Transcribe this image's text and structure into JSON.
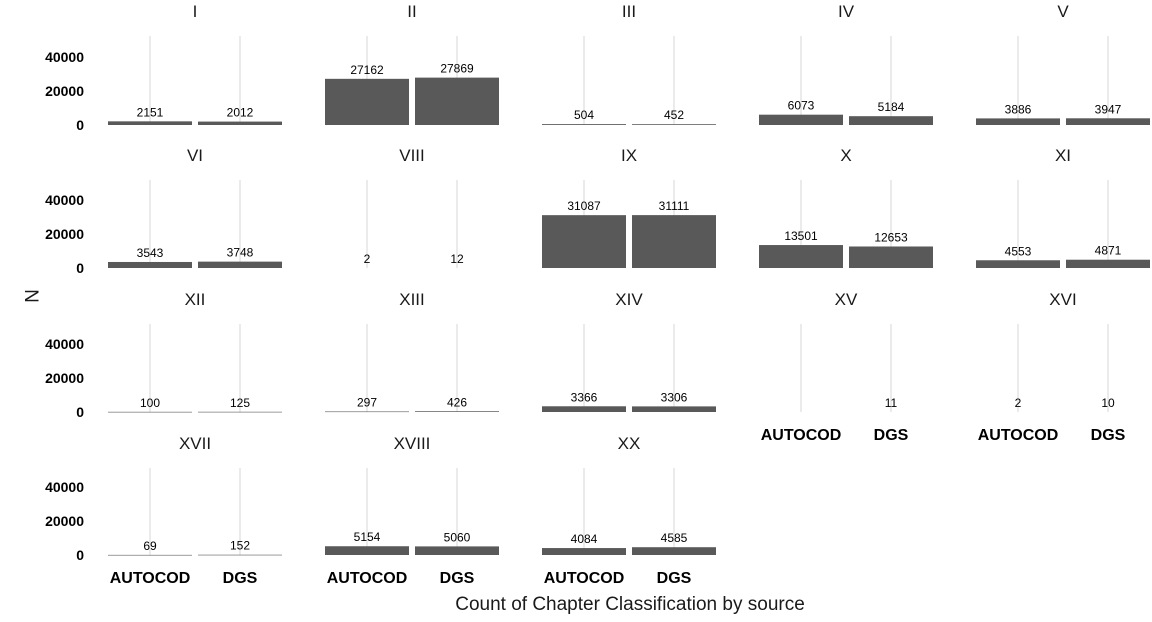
{
  "chart_data": {
    "type": "bar",
    "facet_layout": "wrap-5-columns",
    "xlabel": "Count of Chapter Classification by source",
    "ylabel": "N",
    "categories": [
      "AUTOCOD",
      "DGS"
    ],
    "y_ticks": [
      0,
      20000,
      40000
    ],
    "ylim": [
      0,
      52000
    ],
    "grid": "vertical-major",
    "bar_color": "#595959",
    "facets": [
      {
        "label": "I",
        "values": [
          2151,
          2012
        ]
      },
      {
        "label": "II",
        "values": [
          27162,
          27869
        ]
      },
      {
        "label": "III",
        "values": [
          504,
          452
        ]
      },
      {
        "label": "IV",
        "values": [
          6073,
          5184
        ]
      },
      {
        "label": "V",
        "values": [
          3886,
          3947
        ]
      },
      {
        "label": "VI",
        "values": [
          3543,
          3748
        ]
      },
      {
        "label": "VIII",
        "values": [
          2,
          12
        ]
      },
      {
        "label": "IX",
        "values": [
          31087,
          31111
        ]
      },
      {
        "label": "X",
        "values": [
          13501,
          12653
        ]
      },
      {
        "label": "XI",
        "values": [
          4553,
          4871
        ]
      },
      {
        "label": "XII",
        "values": [
          100,
          125
        ]
      },
      {
        "label": "XIII",
        "values": [
          297,
          426
        ]
      },
      {
        "label": "XIV",
        "values": [
          3366,
          3306
        ]
      },
      {
        "label": "XV",
        "values": [
          null,
          11
        ]
      },
      {
        "label": "XVI",
        "values": [
          2,
          10
        ]
      },
      {
        "label": "XVII",
        "values": [
          69,
          152
        ]
      },
      {
        "label": "XVIII",
        "values": [
          5154,
          5060
        ]
      },
      {
        "label": "XX",
        "values": [
          4084,
          4585
        ]
      }
    ]
  }
}
